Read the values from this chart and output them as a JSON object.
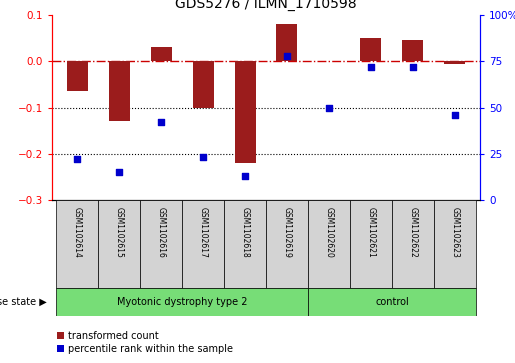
{
  "title": "GDS5276 / ILMN_1710598",
  "samples": [
    "GSM1102614",
    "GSM1102615",
    "GSM1102616",
    "GSM1102617",
    "GSM1102618",
    "GSM1102619",
    "GSM1102620",
    "GSM1102621",
    "GSM1102622",
    "GSM1102623"
  ],
  "red_values": [
    -0.065,
    -0.13,
    0.03,
    -0.1,
    -0.22,
    0.08,
    0.0,
    0.05,
    0.045,
    -0.005
  ],
  "blue_values": [
    22,
    15,
    42,
    23,
    13,
    78,
    50,
    72,
    72,
    46
  ],
  "ylim_left": [
    -0.3,
    0.1
  ],
  "ylim_right": [
    0,
    100
  ],
  "yticks_left": [
    -0.3,
    -0.2,
    -0.1,
    0.0,
    0.1
  ],
  "yticks_right": [
    0,
    25,
    50,
    75,
    100
  ],
  "hline_y": 0.0,
  "dotted_lines": [
    -0.1,
    -0.2
  ],
  "group1_label": "Myotonic dystrophy type 2",
  "group2_label": "control",
  "group1_indices": [
    0,
    1,
    2,
    3,
    4,
    5
  ],
  "group2_indices": [
    6,
    7,
    8,
    9
  ],
  "disease_state_label": "disease state",
  "legend_red_label": "transformed count",
  "legend_blue_label": "percentile rank within the sample",
  "bar_color": "#9B1C1C",
  "blue_color": "#0000CC",
  "red_dash_color": "#CC0000",
  "group_color": "#77DD77"
}
